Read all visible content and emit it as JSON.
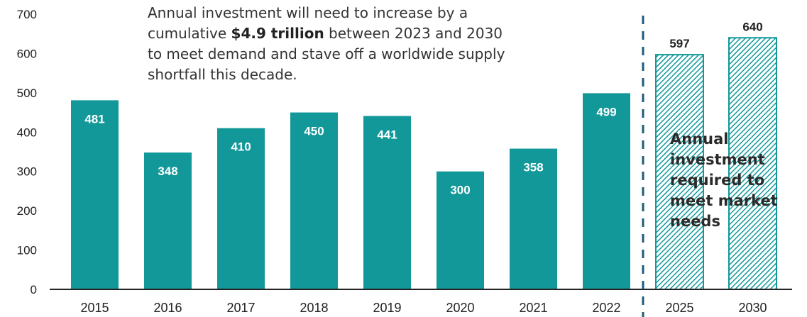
{
  "annotation": {
    "line1": "Annual investment will need to increase by a",
    "line2_before": "cumulative ",
    "line2_bold": "$4.9 trillion",
    "line2_after": " between 2023 and 2030",
    "line3": "to meet demand and stave off a worldwide supply",
    "line4": "shortfall this decade."
  },
  "side_note": {
    "line1": "Annual",
    "line2": "investment",
    "line3": "required to",
    "line4": "meet market",
    "line5": "needs"
  },
  "colors": {
    "actual_bar": "#13989a",
    "projected_bar": "#13989a",
    "divider": "#1e5a7a",
    "axis": "#222222"
  },
  "chart_data": {
    "type": "bar",
    "categories": [
      "2015",
      "2016",
      "2017",
      "2018",
      "2019",
      "2020",
      "2021",
      "2022",
      "2025",
      "2030"
    ],
    "values": [
      481,
      348,
      410,
      450,
      441,
      300,
      358,
      499,
      597,
      640
    ],
    "projected": [
      false,
      false,
      false,
      false,
      false,
      false,
      false,
      false,
      true,
      true
    ],
    "ylim": [
      0,
      700
    ],
    "yticks": [
      0,
      100,
      200,
      300,
      400,
      500,
      600,
      700
    ],
    "grid": false
  }
}
